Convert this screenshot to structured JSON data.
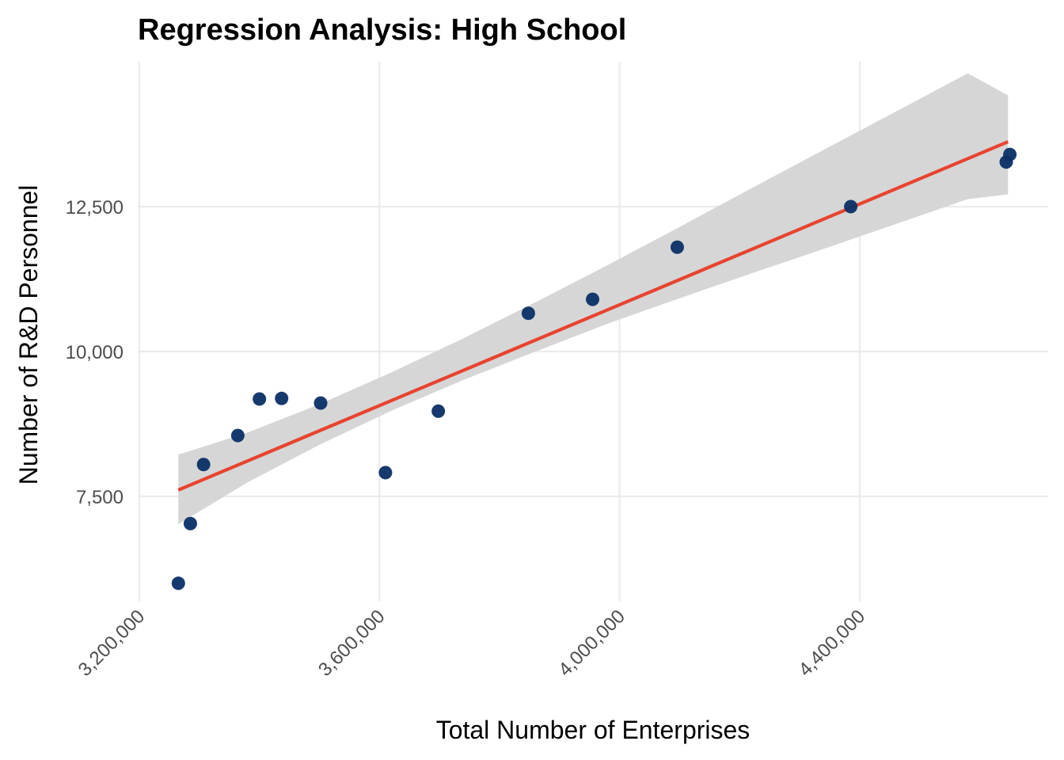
{
  "chart_data": {
    "type": "scatter",
    "title": "Regression Analysis: High School",
    "xlabel": "Total Number of Enterprises",
    "ylabel": "Number of R&D Personnel",
    "xlim": [
      3180000,
      4520000
    ],
    "ylim": [
      5600,
      15200
    ],
    "x_ticks": [
      3200000,
      3600000,
      4000000,
      4400000
    ],
    "x_tick_labels": [
      "3,200,000",
      "3,600,000",
      "4,000,000",
      "4,400,000"
    ],
    "y_ticks": [
      7500,
      10000,
      12500
    ],
    "y_tick_labels": [
      "7,500",
      "10,000",
      "12,500"
    ],
    "grid": true,
    "points": [
      {
        "x": 3265000,
        "y": 6000
      },
      {
        "x": 3285000,
        "y": 7030
      },
      {
        "x": 3307000,
        "y": 8050
      },
      {
        "x": 3364000,
        "y": 8550
      },
      {
        "x": 3400000,
        "y": 9180
      },
      {
        "x": 3437000,
        "y": 9190
      },
      {
        "x": 3502000,
        "y": 9110
      },
      {
        "x": 3610000,
        "y": 7910
      },
      {
        "x": 3698000,
        "y": 8970
      },
      {
        "x": 3848000,
        "y": 10660
      },
      {
        "x": 3955000,
        "y": 10900
      },
      {
        "x": 4096000,
        "y": 11800
      },
      {
        "x": 4385000,
        "y": 12500
      },
      {
        "x": 4644000,
        "y": 13270
      },
      {
        "x": 4650000,
        "y": 13400
      }
    ],
    "fit_line": {
      "x": [
        3265000,
        4647000
      ],
      "y": [
        7610,
        13620
      ]
    },
    "confidence_band": {
      "x": [
        3265000,
        3380000,
        3500000,
        3620000,
        3740000,
        3860000,
        3980000,
        4100000,
        4220000,
        4340000,
        4460000,
        4580000,
        4647000
      ],
      "lower": [
        7020,
        7740,
        8390,
        8980,
        9510,
        10000,
        10480,
        10920,
        11350,
        11770,
        12200,
        12630,
        12710
      ],
      "upper": [
        8220,
        8600,
        9090,
        9640,
        10230,
        10850,
        11490,
        12150,
        12820,
        13480,
        14140,
        14800,
        14420
      ]
    },
    "colors": {
      "point": "#0b2f66",
      "line": "#e8432f",
      "band": "#d6d6d6",
      "grid": "#ebebeb"
    }
  }
}
